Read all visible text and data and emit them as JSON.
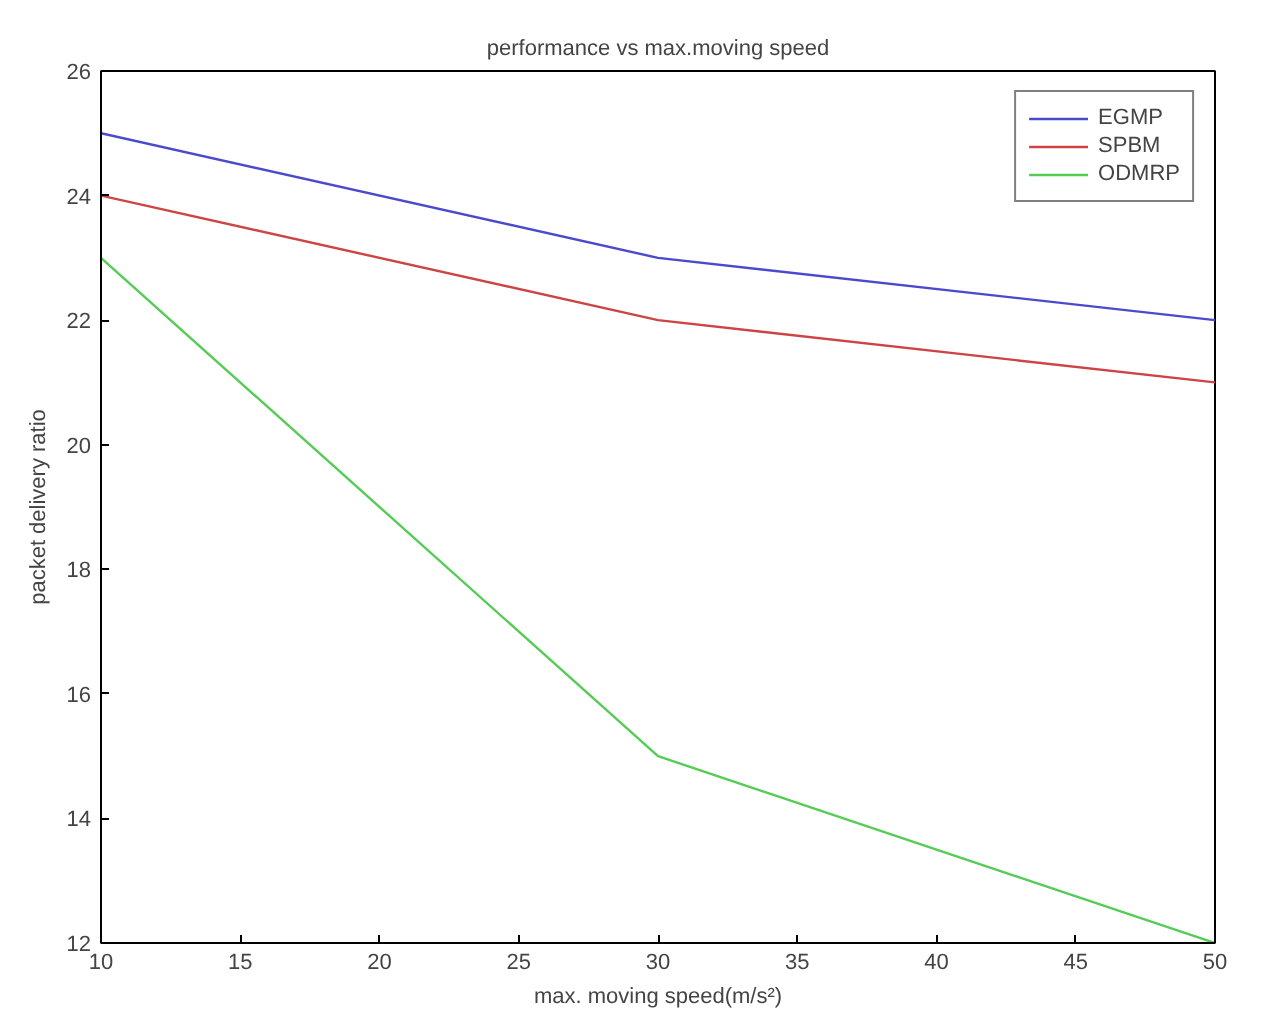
{
  "chart_data": {
    "type": "line",
    "title": "performance vs max.moving speed",
    "xlabel": "max. moving speed(m/s²)",
    "ylabel": "packet delivery ratio",
    "x": [
      10,
      30,
      50
    ],
    "series": [
      {
        "name": "EGMP",
        "color": "#4a4acc",
        "values": [
          25,
          23,
          22
        ]
      },
      {
        "name": "SPBM",
        "color": "#cc4444",
        "values": [
          24,
          22,
          21
        ]
      },
      {
        "name": "ODMRP",
        "color": "#55cc55",
        "values": [
          23,
          15,
          12
        ]
      }
    ],
    "xlim": [
      10,
      50
    ],
    "xticks": [
      10,
      15,
      20,
      25,
      30,
      35,
      40,
      45,
      50
    ],
    "ylim": [
      12,
      26
    ],
    "yticks": [
      12,
      14,
      16,
      18,
      20,
      22,
      24,
      26
    ],
    "grid": false,
    "legend": "top right",
    "marker": "none",
    "line_style": "solid"
  }
}
